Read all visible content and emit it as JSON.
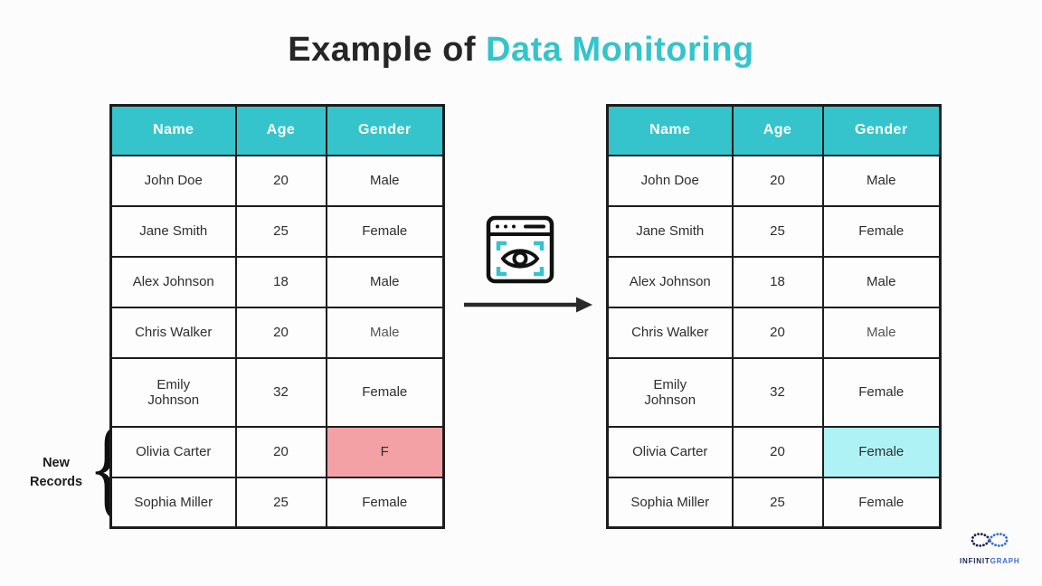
{
  "title": {
    "prefix": "Example of ",
    "highlight": "Data Monitoring"
  },
  "colors": {
    "accent_teal": "#35c4cb",
    "error_pink": "#f4a1a6",
    "fixed_cyan": "#aef2f6",
    "table_border": "#1d1d1d",
    "logo_navy": "#17234f",
    "logo_blue": "#3a6cd4",
    "arrow_black": "#2a2a2a"
  },
  "annotation": {
    "label": "New\nRecords",
    "brace": "{"
  },
  "tables": {
    "left": {
      "role": "source-table",
      "headers": [
        "Name",
        "Age",
        "Gender"
      ],
      "rows": [
        [
          "John Doe",
          "20",
          "Male"
        ],
        [
          "Jane Smith",
          "25",
          "Female"
        ],
        [
          "Alex Johnson",
          "18",
          "Male"
        ],
        [
          "Chris Walker",
          "20",
          "Male"
        ],
        [
          "Emily\nJohnson",
          "32",
          "Female"
        ],
        [
          "Olivia Carter",
          "20",
          "F"
        ],
        [
          "Sophia Miller",
          "25",
          "Female"
        ]
      ],
      "highlight_cell": {
        "row": 5,
        "col": 2,
        "color_key": "error_pink",
        "name": "error-cell"
      },
      "light_cell": {
        "row": 3,
        "col": 2
      }
    },
    "right": {
      "role": "monitored-table",
      "headers": [
        "Name",
        "Age",
        "Gender"
      ],
      "rows": [
        [
          "John Doe",
          "20",
          "Male"
        ],
        [
          "Jane Smith",
          "25",
          "Female"
        ],
        [
          "Alex Johnson",
          "18",
          "Male"
        ],
        [
          "Chris Walker",
          "20",
          "Male"
        ],
        [
          "Emily\nJohnson",
          "32",
          "Female"
        ],
        [
          "Olivia Carter",
          "20",
          "Female"
        ],
        [
          "Sophia Miller",
          "25",
          "Female"
        ]
      ],
      "highlight_cell": {
        "row": 5,
        "col": 2,
        "color_key": "fixed_cyan",
        "name": "corrected-cell"
      },
      "light_cell": {
        "row": 3,
        "col": 2
      }
    }
  },
  "logo": {
    "name_dark": "INFINIT",
    "name_light": "GRAPH"
  }
}
